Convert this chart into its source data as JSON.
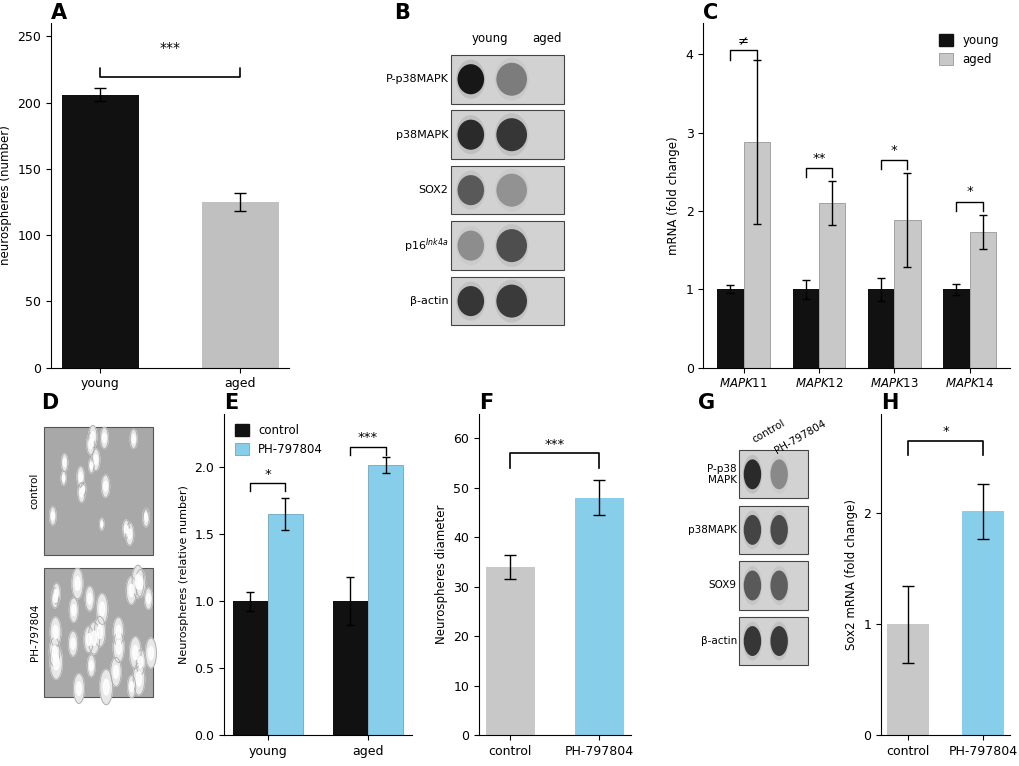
{
  "panel_A": {
    "categories": [
      "young",
      "aged"
    ],
    "values": [
      206,
      125
    ],
    "errors": [
      5,
      7
    ],
    "colors": [
      "#111111",
      "#c0c0c0"
    ],
    "ylabel": "neurospheres (number)",
    "ylim": [
      0,
      260
    ],
    "yticks": [
      0,
      50,
      100,
      150,
      200,
      250
    ],
    "sig_text": "***",
    "title": "A"
  },
  "panel_C": {
    "categories": [
      "MAPK11",
      "MAPK12",
      "MAPK13",
      "MAPK14"
    ],
    "young_values": [
      1.0,
      1.0,
      1.0,
      1.0
    ],
    "aged_values": [
      2.88,
      2.1,
      1.88,
      1.73
    ],
    "young_errors": [
      0.05,
      0.12,
      0.15,
      0.07
    ],
    "aged_errors": [
      1.05,
      0.28,
      0.6,
      0.22
    ],
    "young_color": "#111111",
    "aged_color": "#c8c8c8",
    "ylabel": "mRNA (fold change)",
    "ylim": [
      0,
      4.4
    ],
    "yticks": [
      0,
      1,
      2,
      3,
      4
    ],
    "sig_texts": [
      "≠",
      "**",
      "*",
      "*"
    ],
    "title": "C",
    "legend_labels": [
      "young",
      "aged"
    ]
  },
  "panel_E": {
    "group_labels": [
      "young",
      "aged"
    ],
    "control_values": [
      1.0,
      1.0
    ],
    "drug_values": [
      1.65,
      2.02
    ],
    "control_errors": [
      0.07,
      0.18
    ],
    "drug_errors": [
      0.12,
      0.06
    ],
    "control_color": "#111111",
    "drug_color": "#87CEEB",
    "ylabel": "Neurospheres (relative number)",
    "ylim": [
      0,
      2.4
    ],
    "yticks": [
      0,
      0.5,
      1.0,
      1.5,
      2.0
    ],
    "sig_texts": [
      "*",
      "***"
    ],
    "title": "E",
    "legend_labels": [
      "control",
      "PH-797804"
    ]
  },
  "panel_F": {
    "categories": [
      "control",
      "PH-797804"
    ],
    "values": [
      34,
      48
    ],
    "errors": [
      2.5,
      3.5
    ],
    "colors": [
      "#c8c8c8",
      "#87CEEB"
    ],
    "ylabel": "Neurospheres diameter",
    "ylim": [
      0,
      65
    ],
    "yticks": [
      0,
      10,
      20,
      30,
      40,
      50,
      60
    ],
    "sig_text": "***",
    "title": "F"
  },
  "panel_H": {
    "categories": [
      "control",
      "PH-797804"
    ],
    "values": [
      1.0,
      2.02
    ],
    "errors": [
      0.35,
      0.25
    ],
    "colors": [
      "#c8c8c8",
      "#87CEEB"
    ],
    "ylabel": "Sox2 mRNA (fold change)",
    "ylim": [
      0,
      2.9
    ],
    "yticks": [
      0,
      1,
      2
    ],
    "sig_text": "*",
    "title": "H"
  },
  "background_color": "#ffffff"
}
